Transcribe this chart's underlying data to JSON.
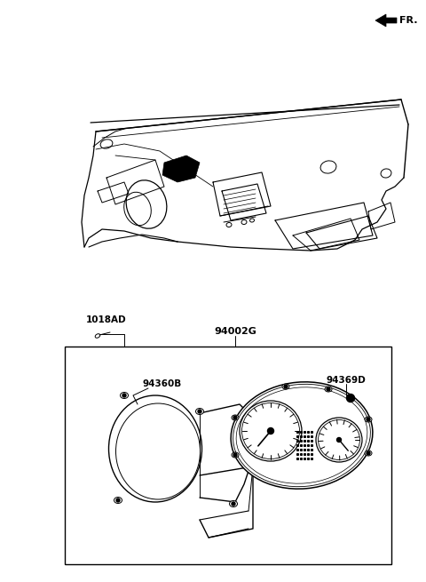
{
  "bg_color": "#ffffff",
  "line_color": "#000000",
  "fr_label": "FR.",
  "parts": {
    "screw_label": "1018AD",
    "cluster_box_label": "94002G",
    "housing_label": "94360B",
    "bezel_label": "94369D"
  }
}
